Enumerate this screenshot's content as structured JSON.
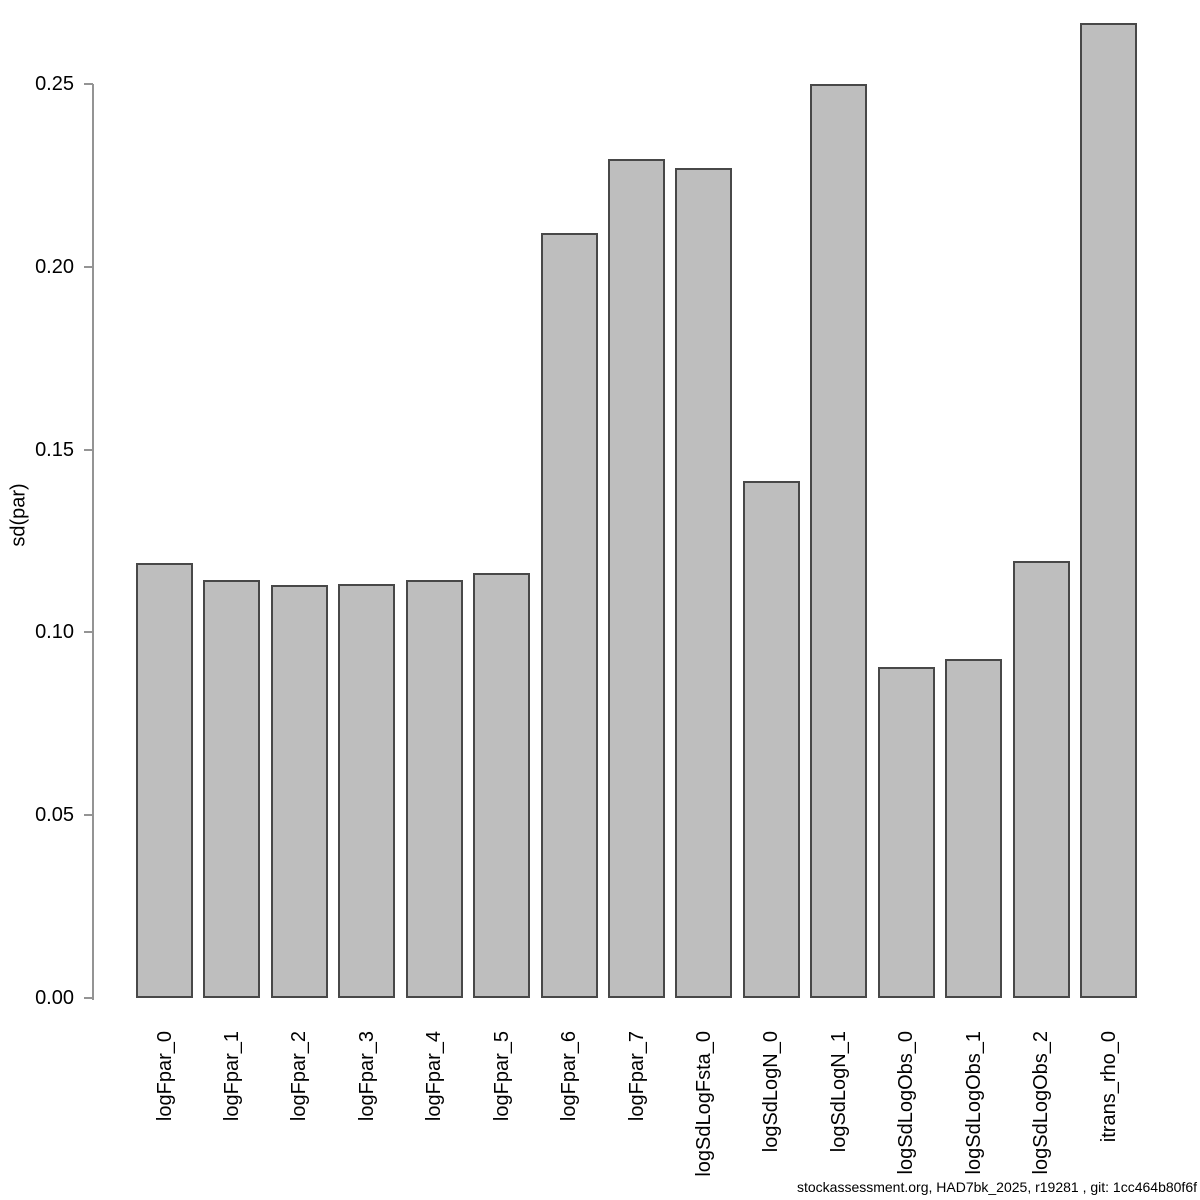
{
  "chart_data": {
    "type": "bar",
    "title": "",
    "xlabel": "",
    "ylabel": "sd(par)",
    "ylim": [
      0,
      0.25
    ],
    "yticks": [
      0.0,
      0.05,
      0.1,
      0.15,
      0.2,
      0.25
    ],
    "ytick_labels": [
      "0.00",
      "0.05",
      "0.10",
      "0.15",
      "0.20",
      "0.25"
    ],
    "grid": false,
    "legend_position": "none",
    "bar_fill_color": "#bebebe",
    "bar_border_color": "#484848",
    "axis_color": "#949494",
    "categories": [
      "logFpar_0",
      "logFpar_1",
      "logFpar_2",
      "logFpar_3",
      "logFpar_4",
      "logFpar_5",
      "logFpar_6",
      "logFpar_7",
      "logSdLogFsta_0",
      "logSdLogN_0",
      "logSdLogN_1",
      "logSdLogObs_0",
      "logSdLogObs_1",
      "logSdLogObs_2",
      "itrans_rho_0"
    ],
    "values": [
      0.119,
      0.1143,
      0.113,
      0.1132,
      0.1143,
      0.1162,
      0.2093,
      0.2295,
      0.227,
      0.1414,
      0.25,
      0.0905,
      0.0927,
      0.1195,
      0.2667
    ]
  },
  "footer": {
    "text": "stockassessment.org, HAD7bk_2025, r19281 , git: 1cc464b80f6f"
  }
}
